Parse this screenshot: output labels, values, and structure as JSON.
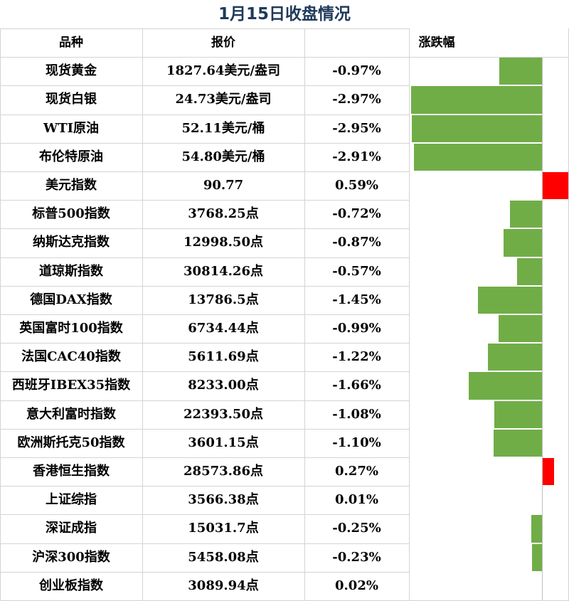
{
  "title": "1月15日收盘情况",
  "headers": {
    "name": "品种",
    "price": "报价",
    "change": "涨跌幅"
  },
  "colors": {
    "negative": "#70ad47",
    "positive": "#ff0000",
    "title": "#1f3a5a"
  },
  "rows": [
    {
      "name": "现货黄金",
      "price": "1827.64美元/盎司",
      "change": "-0.97%",
      "value": -0.97
    },
    {
      "name": "现货白银",
      "price": "24.73美元/盎司",
      "change": "-2.97%",
      "value": -2.97
    },
    {
      "name": "WTI原油",
      "price": "52.11美元/桶",
      "change": "-2.95%",
      "value": -2.95
    },
    {
      "name": "布伦特原油",
      "price": "54.80美元/桶",
      "change": "-2.91%",
      "value": -2.91
    },
    {
      "name": "美元指数",
      "price": "90.77",
      "change": "0.59%",
      "value": 0.59
    },
    {
      "name": "标普500指数",
      "price": "3768.25点",
      "change": "-0.72%",
      "value": -0.72
    },
    {
      "name": "纳斯达克指数",
      "price": "12998.50点",
      "change": "-0.87%",
      "value": -0.87
    },
    {
      "name": "道琼斯指数",
      "price": "30814.26点",
      "change": "-0.57%",
      "value": -0.57
    },
    {
      "name": "德国DAX指数",
      "price": "13786.5点",
      "change": "-1.45%",
      "value": -1.45
    },
    {
      "name": "英国富时100指数",
      "price": "6734.44点",
      "change": "-0.99%",
      "value": -0.99
    },
    {
      "name": "法国CAC40指数",
      "price": "5611.69点",
      "change": "-1.22%",
      "value": -1.22
    },
    {
      "name": "西班牙IBEX35指数",
      "price": "8233.00点",
      "change": "-1.66%",
      "value": -1.66
    },
    {
      "name": "意大利富时指数",
      "price": "22393.50点",
      "change": "-1.08%",
      "value": -1.08
    },
    {
      "name": "欧洲斯托克50指数",
      "price": "3601.15点",
      "change": "-1.10%",
      "value": -1.1
    },
    {
      "name": "香港恒生指数",
      "price": "28573.86点",
      "change": "0.27%",
      "value": 0.27
    },
    {
      "name": "上证综指",
      "price": "3566.38点",
      "change": "0.01%",
      "value": 0.01
    },
    {
      "name": "深证成指",
      "price": "15031.7点",
      "change": "-0.25%",
      "value": -0.25
    },
    {
      "name": "沪深300指数",
      "price": "5458.08点",
      "change": "-0.23%",
      "value": -0.23
    },
    {
      "name": "创业板指数",
      "price": "3089.94点",
      "change": "0.02%",
      "value": 0.02
    }
  ]
}
